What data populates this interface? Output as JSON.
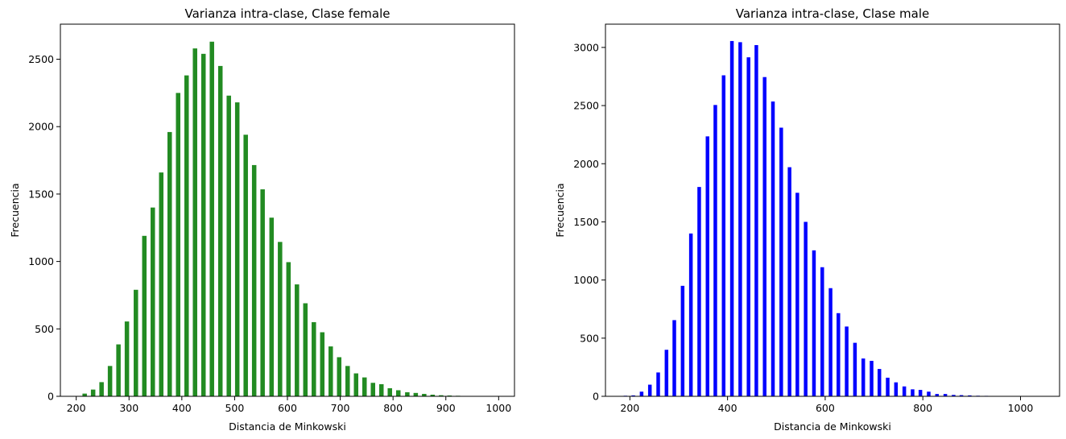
{
  "chart_data": [
    {
      "type": "bar",
      "title": "Varianza intra-clase, Clase female",
      "xlabel": "Distancia de Minkowski",
      "ylabel": "Frecuencia",
      "color": "#228B22",
      "xlim": [
        170,
        1030
      ],
      "ylim": [
        0,
        2760
      ],
      "xticks": [
        200,
        300,
        400,
        500,
        600,
        700,
        800,
        900,
        1000
      ],
      "yticks": [
        0,
        500,
        1000,
        1500,
        2000,
        2500
      ],
      "bar_width": 8.4,
      "x": [
        200,
        216,
        232,
        248,
        264,
        280,
        296,
        313,
        329,
        345,
        361,
        377,
        393,
        409,
        425,
        441,
        457,
        473,
        489,
        505,
        521,
        537,
        553,
        570,
        586,
        602,
        618,
        634,
        650,
        666,
        682,
        698,
        714,
        730,
        746,
        762,
        778,
        794,
        810,
        827,
        843,
        859,
        875,
        891,
        907,
        923,
        939,
        955,
        971,
        987,
        1003
      ],
      "values": [
        2,
        20,
        50,
        105,
        225,
        385,
        555,
        790,
        1190,
        1400,
        1660,
        1960,
        2250,
        2380,
        2580,
        2540,
        2630,
        2450,
        2230,
        2180,
        1940,
        1715,
        1535,
        1325,
        1145,
        995,
        830,
        690,
        550,
        475,
        370,
        290,
        225,
        170,
        140,
        100,
        90,
        60,
        45,
        30,
        25,
        18,
        12,
        8,
        6,
        4,
        3,
        2,
        2,
        1,
        1
      ]
    },
    {
      "type": "bar",
      "title": "Varianza intra-clase, Clase male",
      "xlabel": "Distancia de Minkowski",
      "ylabel": "Frecuencia",
      "color": "#0000FF",
      "xlim": [
        150,
        1080
      ],
      "ylim": [
        0,
        3200
      ],
      "xticks": [
        200,
        400,
        600,
        800,
        1000
      ],
      "yticks": [
        0,
        500,
        1000,
        1500,
        2000,
        2500,
        3000
      ],
      "bar_width": 7.4,
      "x": [
        191,
        207,
        224,
        241,
        258,
        275,
        291,
        308,
        325,
        342,
        359,
        375,
        392,
        409,
        426,
        443,
        459,
        476,
        493,
        510,
        527,
        543,
        560,
        577,
        594,
        611,
        627,
        644,
        661,
        678,
        695,
        711,
        728,
        745,
        762,
        779,
        795,
        812,
        829,
        846,
        863,
        879,
        896,
        913,
        930,
        947,
        963,
        980,
        997,
        1014,
        1031,
        1047
      ],
      "values": [
        5,
        8,
        40,
        100,
        205,
        400,
        655,
        950,
        1400,
        1800,
        2235,
        2505,
        2760,
        3055,
        3045,
        2915,
        3020,
        2745,
        2535,
        2310,
        1970,
        1750,
        1500,
        1255,
        1110,
        930,
        715,
        600,
        460,
        325,
        305,
        235,
        160,
        120,
        85,
        60,
        55,
        40,
        20,
        20,
        12,
        10,
        8,
        5,
        4,
        3,
        2,
        2,
        1,
        1,
        1,
        0
      ]
    }
  ]
}
